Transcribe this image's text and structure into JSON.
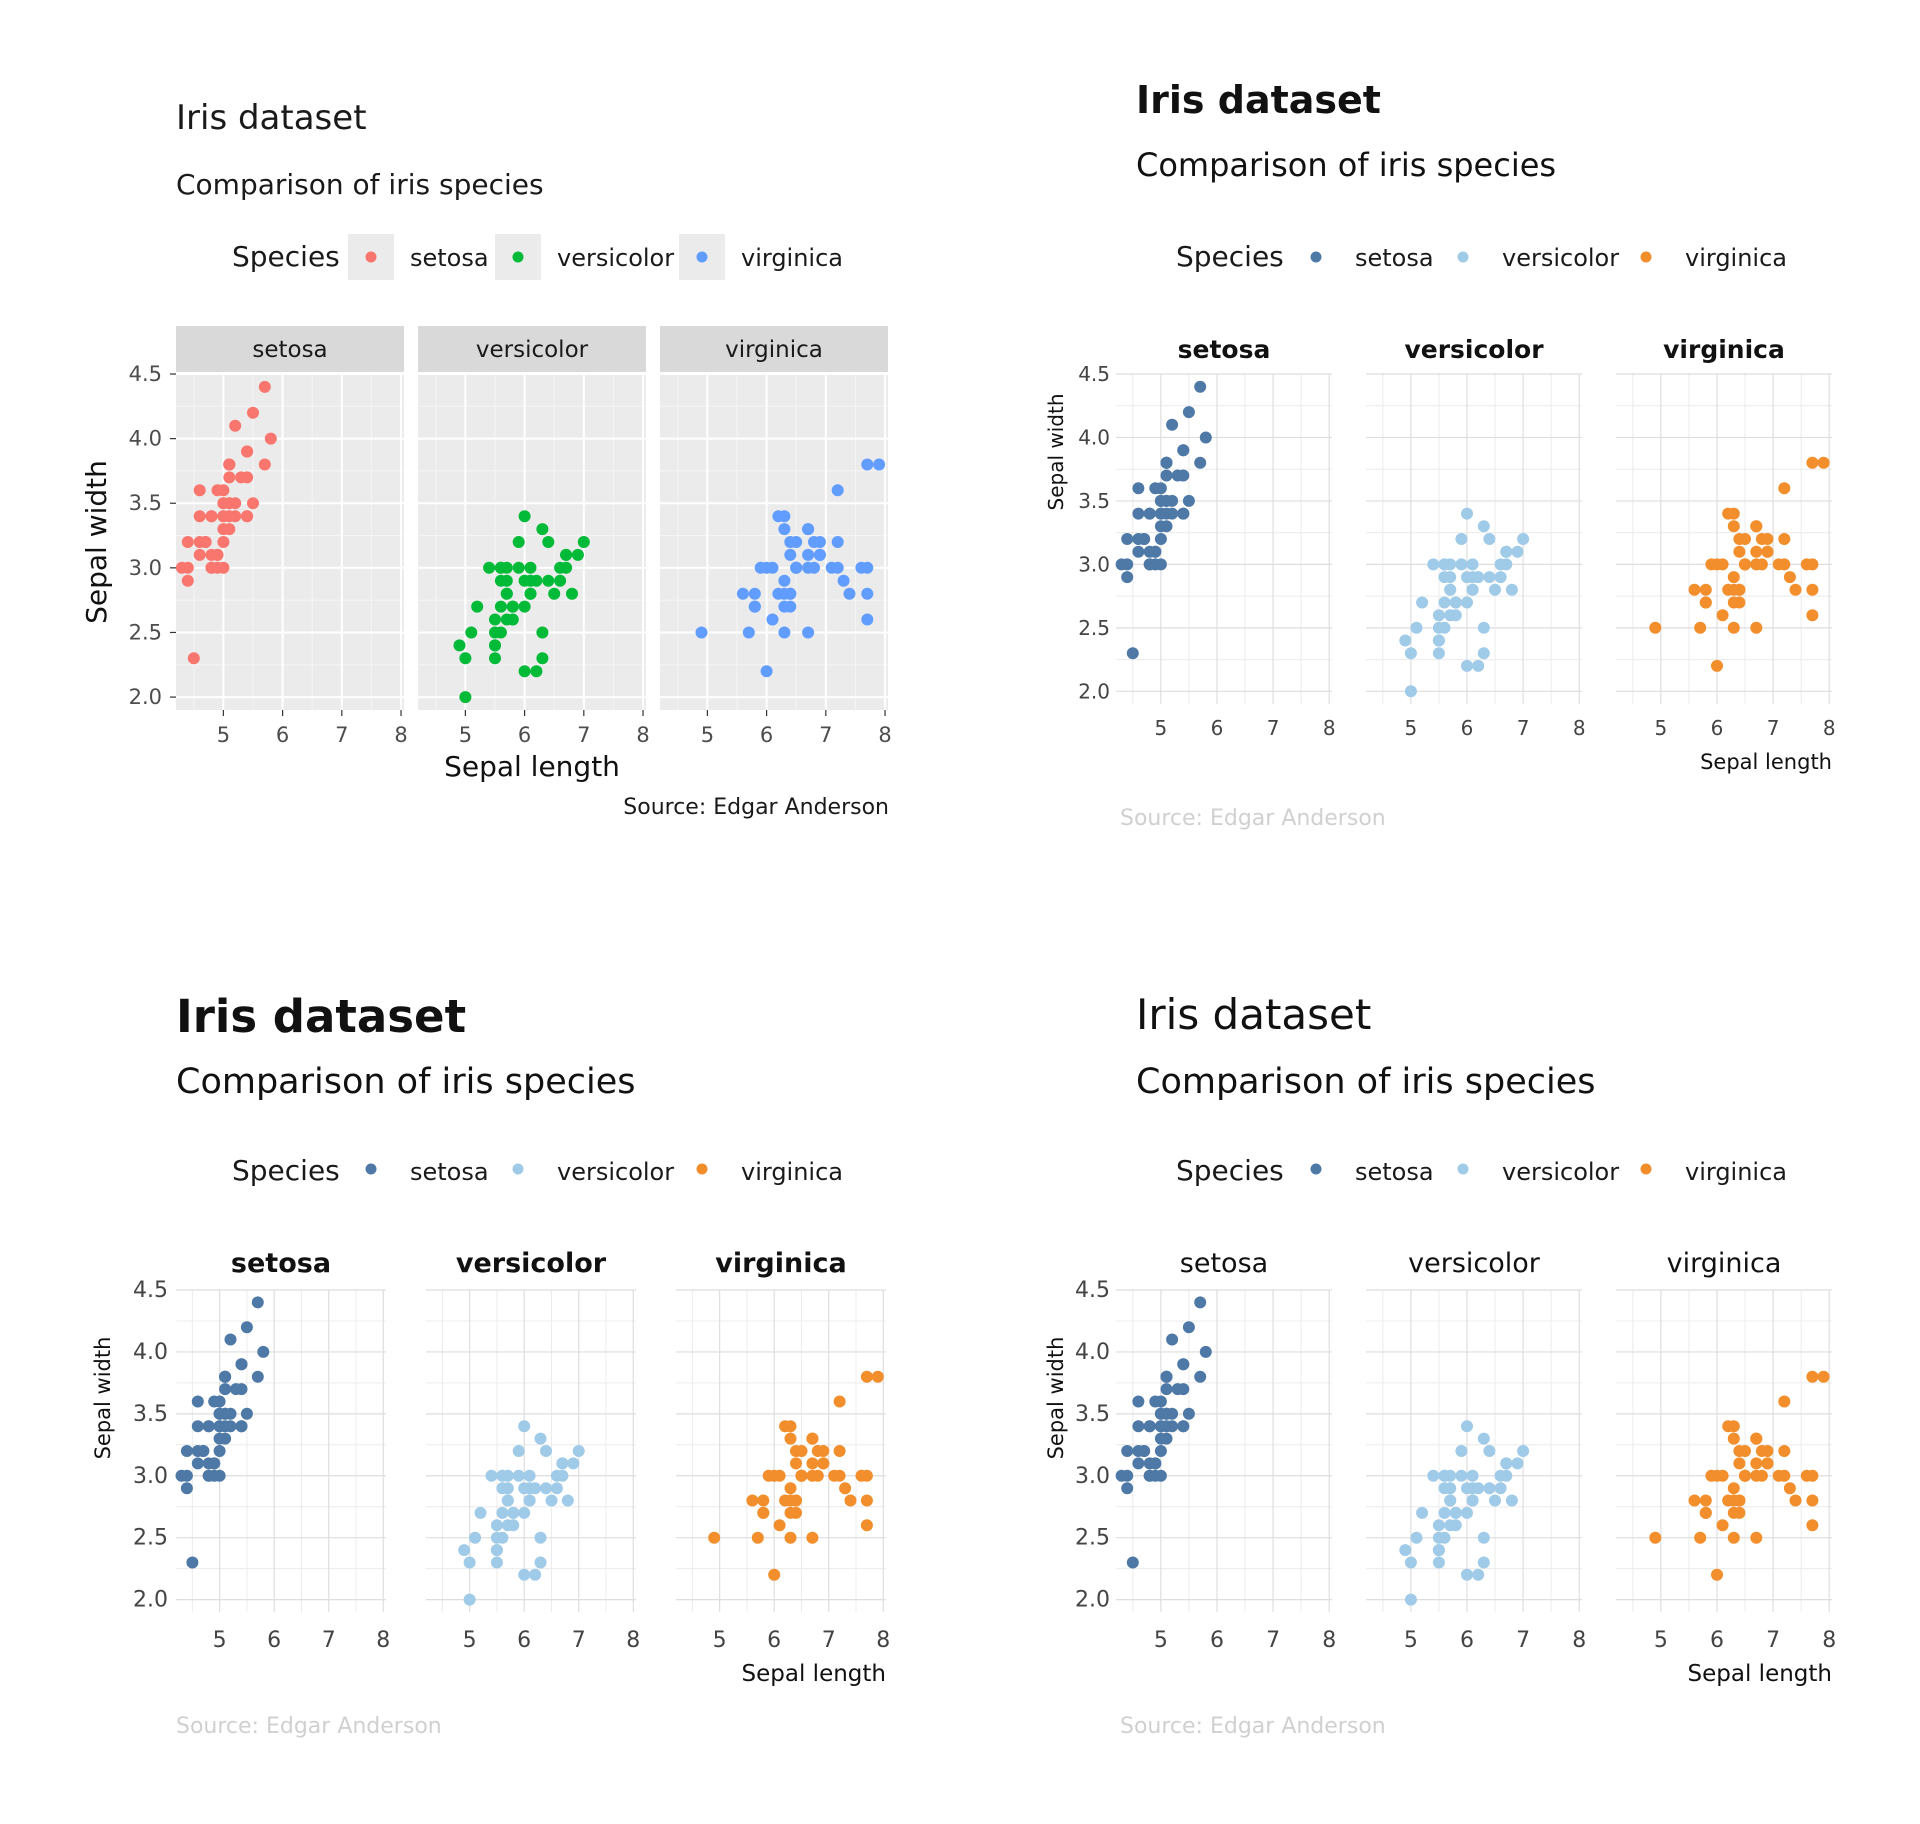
{
  "charts": [
    {
      "title": "Iris dataset",
      "subtitle": "Comparison of iris species",
      "legend_title": "Species",
      "source": "Source: Edgar Anderson",
      "colors": [
        "#F8766D",
        "#00BA38",
        "#619CFF"
      ]
    },
    {
      "title": "Iris dataset",
      "subtitle": "Comparison of iris species",
      "legend_title": "Species",
      "source": "Source: Edgar Anderson",
      "colors": [
        "#4E79A7",
        "#A0CBE8",
        "#F28E2B"
      ]
    },
    {
      "title": "Iris dataset",
      "subtitle": "Comparison of iris species",
      "legend_title": "Species",
      "source": "Source: Edgar Anderson",
      "colors": [
        "#4E79A7",
        "#A0CBE8",
        "#F28E2B"
      ]
    },
    {
      "title": "Iris dataset",
      "subtitle": "Comparison of iris species",
      "legend_title": "Species",
      "source": "Source: Edgar Anderson",
      "colors": [
        "#4E79A7",
        "#A0CBE8",
        "#F28E2B"
      ]
    }
  ],
  "chart_data": {
    "type": "scatter",
    "facet_by": "Species",
    "xlabel": "Sepal length",
    "ylabel": "Sepal width",
    "xlim": [
      4.2,
      8.05
    ],
    "ylim": [
      1.9,
      4.5
    ],
    "x_ticks": [
      "5",
      "6",
      "7",
      "8"
    ],
    "y_ticks": [
      "2.0",
      "2.5",
      "3.0",
      "3.5",
      "4.0",
      "4.5"
    ],
    "series": [
      {
        "name": "setosa",
        "points": [
          [
            5.1,
            3.5
          ],
          [
            4.9,
            3.0
          ],
          [
            4.7,
            3.2
          ],
          [
            4.6,
            3.1
          ],
          [
            5.0,
            3.6
          ],
          [
            5.4,
            3.9
          ],
          [
            4.6,
            3.4
          ],
          [
            5.0,
            3.4
          ],
          [
            4.4,
            2.9
          ],
          [
            4.9,
            3.1
          ],
          [
            5.4,
            3.7
          ],
          [
            4.8,
            3.4
          ],
          [
            4.8,
            3.0
          ],
          [
            4.3,
            3.0
          ],
          [
            5.8,
            4.0
          ],
          [
            5.7,
            4.4
          ],
          [
            5.4,
            3.9
          ],
          [
            5.1,
            3.5
          ],
          [
            5.7,
            3.8
          ],
          [
            5.1,
            3.8
          ],
          [
            5.4,
            3.4
          ],
          [
            5.1,
            3.7
          ],
          [
            4.6,
            3.6
          ],
          [
            5.1,
            3.3
          ],
          [
            4.8,
            3.4
          ],
          [
            5.0,
            3.0
          ],
          [
            5.0,
            3.4
          ],
          [
            5.2,
            3.5
          ],
          [
            5.2,
            3.4
          ],
          [
            4.7,
            3.2
          ],
          [
            4.8,
            3.1
          ],
          [
            5.4,
            3.4
          ],
          [
            5.2,
            4.1
          ],
          [
            5.5,
            4.2
          ],
          [
            4.9,
            3.1
          ],
          [
            5.0,
            3.2
          ],
          [
            5.5,
            3.5
          ],
          [
            4.9,
            3.6
          ],
          [
            4.4,
            3.0
          ],
          [
            5.1,
            3.4
          ],
          [
            5.0,
            3.5
          ],
          [
            4.5,
            2.3
          ],
          [
            4.4,
            3.2
          ],
          [
            5.0,
            3.5
          ],
          [
            5.1,
            3.8
          ],
          [
            4.8,
            3.0
          ],
          [
            5.1,
            3.8
          ],
          [
            4.6,
            3.2
          ],
          [
            5.3,
            3.7
          ],
          [
            5.0,
            3.3
          ]
        ]
      },
      {
        "name": "versicolor",
        "points": [
          [
            7.0,
            3.2
          ],
          [
            6.4,
            3.2
          ],
          [
            6.9,
            3.1
          ],
          [
            5.5,
            2.3
          ],
          [
            6.5,
            2.8
          ],
          [
            5.7,
            2.8
          ],
          [
            6.3,
            3.3
          ],
          [
            4.9,
            2.4
          ],
          [
            6.6,
            2.9
          ],
          [
            5.2,
            2.7
          ],
          [
            5.0,
            2.0
          ],
          [
            5.9,
            3.0
          ],
          [
            6.0,
            2.2
          ],
          [
            6.1,
            2.9
          ],
          [
            5.6,
            2.9
          ],
          [
            6.7,
            3.1
          ],
          [
            5.6,
            3.0
          ],
          [
            5.8,
            2.7
          ],
          [
            6.2,
            2.2
          ],
          [
            5.6,
            2.5
          ],
          [
            5.9,
            3.2
          ],
          [
            6.1,
            2.8
          ],
          [
            6.3,
            2.5
          ],
          [
            6.1,
            2.8
          ],
          [
            6.4,
            2.9
          ],
          [
            6.6,
            3.0
          ],
          [
            6.8,
            2.8
          ],
          [
            6.7,
            3.0
          ],
          [
            6.0,
            2.9
          ],
          [
            5.7,
            2.6
          ],
          [
            5.5,
            2.4
          ],
          [
            5.5,
            2.4
          ],
          [
            5.8,
            2.7
          ],
          [
            6.0,
            2.7
          ],
          [
            5.4,
            3.0
          ],
          [
            6.0,
            3.4
          ],
          [
            6.7,
            3.1
          ],
          [
            6.3,
            2.3
          ],
          [
            5.6,
            3.0
          ],
          [
            5.5,
            2.5
          ],
          [
            5.5,
            2.6
          ],
          [
            6.1,
            3.0
          ],
          [
            5.8,
            2.6
          ],
          [
            5.0,
            2.3
          ],
          [
            5.6,
            2.7
          ],
          [
            5.7,
            3.0
          ],
          [
            5.7,
            2.9
          ],
          [
            6.2,
            2.9
          ],
          [
            5.1,
            2.5
          ],
          [
            5.7,
            2.8
          ]
        ]
      },
      {
        "name": "virginica",
        "points": [
          [
            6.3,
            3.3
          ],
          [
            5.8,
            2.7
          ],
          [
            7.1,
            3.0
          ],
          [
            6.3,
            2.9
          ],
          [
            6.5,
            3.0
          ],
          [
            7.6,
            3.0
          ],
          [
            4.9,
            2.5
          ],
          [
            7.3,
            2.9
          ],
          [
            6.7,
            2.5
          ],
          [
            7.2,
            3.6
          ],
          [
            6.5,
            3.2
          ],
          [
            6.4,
            2.7
          ],
          [
            6.8,
            3.0
          ],
          [
            5.7,
            2.5
          ],
          [
            5.8,
            2.8
          ],
          [
            6.4,
            3.2
          ],
          [
            6.5,
            3.0
          ],
          [
            7.7,
            3.8
          ],
          [
            7.7,
            2.6
          ],
          [
            6.0,
            2.2
          ],
          [
            6.9,
            3.2
          ],
          [
            5.6,
            2.8
          ],
          [
            7.7,
            2.8
          ],
          [
            6.3,
            2.7
          ],
          [
            6.7,
            3.3
          ],
          [
            7.2,
            3.2
          ],
          [
            6.2,
            2.8
          ],
          [
            6.1,
            3.0
          ],
          [
            6.4,
            2.8
          ],
          [
            7.2,
            3.0
          ],
          [
            7.4,
            2.8
          ],
          [
            7.9,
            3.8
          ],
          [
            6.4,
            2.8
          ],
          [
            6.3,
            2.8
          ],
          [
            6.1,
            2.6
          ],
          [
            7.7,
            3.0
          ],
          [
            6.3,
            3.4
          ],
          [
            6.4,
            3.1
          ],
          [
            6.0,
            3.0
          ],
          [
            6.9,
            3.1
          ],
          [
            6.7,
            3.1
          ],
          [
            6.9,
            3.1
          ],
          [
            5.8,
            2.7
          ],
          [
            6.8,
            3.2
          ],
          [
            6.7,
            3.3
          ],
          [
            6.7,
            3.0
          ],
          [
            6.3,
            2.5
          ],
          [
            6.5,
            3.0
          ],
          [
            6.2,
            3.4
          ],
          [
            5.9,
            3.0
          ]
        ]
      }
    ]
  }
}
